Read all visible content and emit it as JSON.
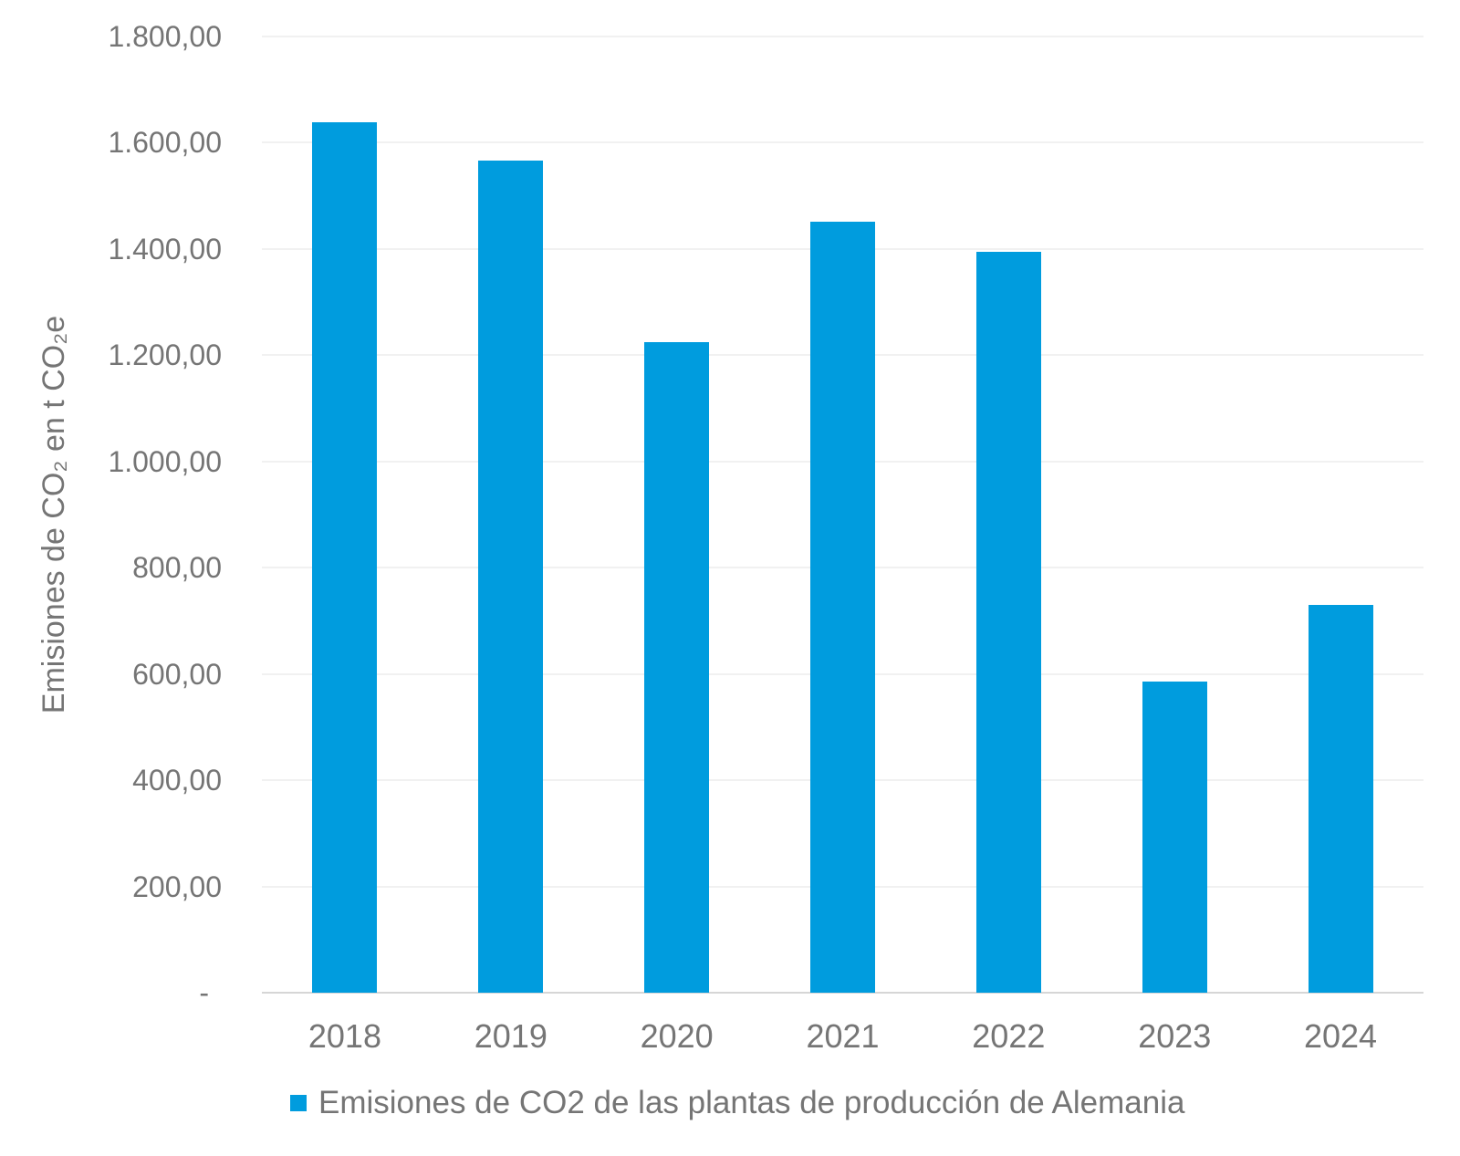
{
  "colors": {
    "bar": "#009CDE",
    "grid": "#F1F1F1",
    "axis_line": "#D6D6D6",
    "text": "#757575",
    "background": "#FFFFFF"
  },
  "legend": {
    "marker_color": "#009CDE",
    "label": "Emisiones de CO2 de las plantas de producción de Alemania"
  },
  "chart_data": {
    "type": "bar",
    "title": "",
    "categories": [
      "2018",
      "2019",
      "2020",
      "2021",
      "2022",
      "2023",
      "2024"
    ],
    "series": [
      {
        "name": "Emisiones de CO2 de las plantas de producción de Alemania",
        "values": [
          1638,
          1566,
          1225,
          1451,
          1395,
          585,
          730
        ]
      }
    ],
    "xlabel": "",
    "ylabel": "Emisiones de CO₂ en t CO₂e",
    "ylim": [
      0,
      1800
    ],
    "ytick_interval": 200,
    "yticks": [
      {
        "value": 1800,
        "label": "1.800,00"
      },
      {
        "value": 1600,
        "label": "1.600,00"
      },
      {
        "value": 1400,
        "label": "1.400,00"
      },
      {
        "value": 1200,
        "label": "1.200,00"
      },
      {
        "value": 1000,
        "label": "1.000,00"
      },
      {
        "value": 800,
        "label": "800,00"
      },
      {
        "value": 600,
        "label": "600,00"
      },
      {
        "value": 400,
        "label": "400,00"
      },
      {
        "value": 200,
        "label": "200,00"
      },
      {
        "value": 0,
        "label": "-"
      }
    ],
    "grid": true,
    "legend_position": "bottom",
    "bar_color": "#009CDE"
  }
}
